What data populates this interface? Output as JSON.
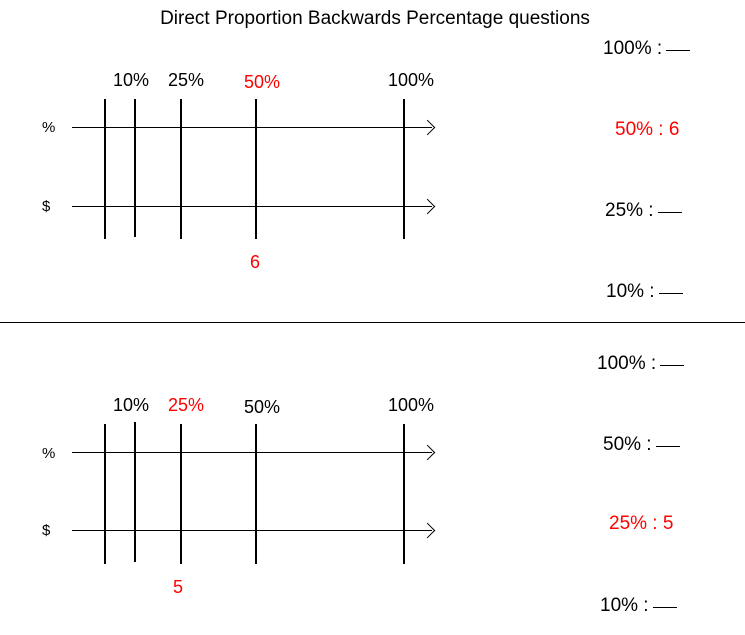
{
  "title": "Direct Proportion Backwards Percentage questions",
  "colors": {
    "highlight": "#ff0000",
    "default": "#000000"
  },
  "axis_labels": {
    "percent": "%",
    "dollar": "$"
  },
  "problem1": {
    "percent_labels": [
      "10%",
      "25%",
      "50%",
      "100%"
    ],
    "given_value": "6",
    "answers": [
      {
        "pct": "100% :",
        "value": ""
      },
      {
        "pct": "50% :",
        "value": "6"
      },
      {
        "pct": "25% :",
        "value": ""
      },
      {
        "pct": "10% :",
        "value": ""
      }
    ]
  },
  "problem2": {
    "percent_labels": [
      "10%",
      "25%",
      "50%",
      "100%"
    ],
    "given_value": "5",
    "answers": [
      {
        "pct": "100% :",
        "value": ""
      },
      {
        "pct": "50% :",
        "value": ""
      },
      {
        "pct": "25% :",
        "value": "5"
      },
      {
        "pct": "10% :",
        "value": ""
      }
    ]
  }
}
